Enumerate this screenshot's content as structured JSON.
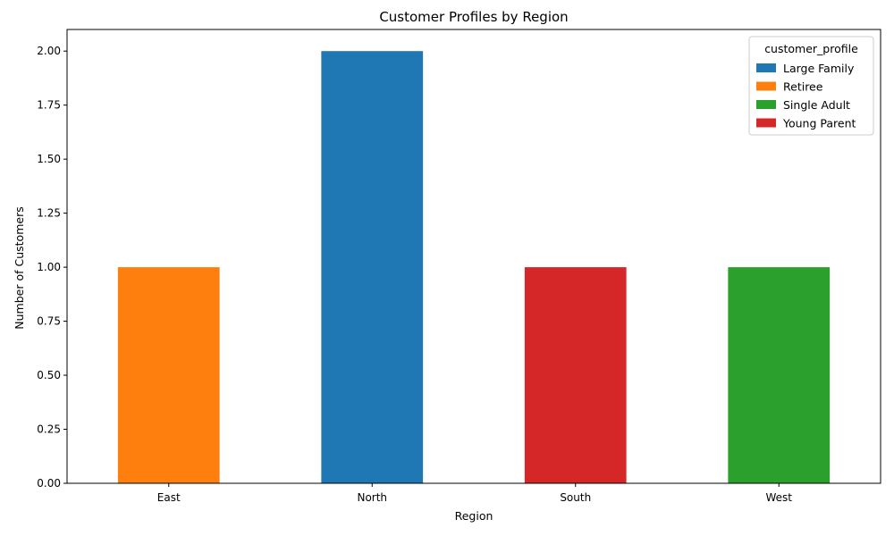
{
  "chart_data": {
    "type": "bar",
    "stacked": true,
    "title": "Customer Profiles by Region",
    "xlabel": "Region",
    "ylabel": "Number of Customers",
    "categories": [
      "East",
      "North",
      "South",
      "West"
    ],
    "ylim": [
      0,
      2.1
    ],
    "yticks": [
      "0.00",
      "0.25",
      "0.50",
      "0.75",
      "1.00",
      "1.25",
      "1.50",
      "1.75",
      "2.00"
    ],
    "legend": {
      "title": "customer_profile",
      "placement": "top-right"
    },
    "series": [
      {
        "name": "Large Family",
        "color": "#1f77b4",
        "values": [
          0,
          2,
          0,
          0
        ]
      },
      {
        "name": "Retiree",
        "color": "#ff7f0e",
        "values": [
          1,
          0,
          0,
          0
        ]
      },
      {
        "name": "Single Adult",
        "color": "#2ca02c",
        "values": [
          0,
          0,
          0,
          1
        ]
      },
      {
        "name": "Young Parent",
        "color": "#d62728",
        "values": [
          0,
          0,
          1,
          0
        ]
      }
    ]
  }
}
